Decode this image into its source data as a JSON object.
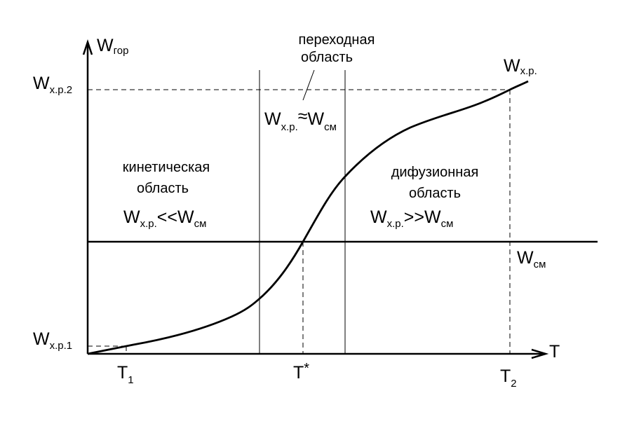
{
  "axes": {
    "y_label": {
      "main": "W",
      "sub": "гор"
    },
    "x_label": "T"
  },
  "y_marks": [
    {
      "main": "W",
      "sub": "х.р.2"
    },
    {
      "main": "W",
      "sub": "х.р.1"
    }
  ],
  "x_marks": [
    {
      "main": "T",
      "sub": "1"
    },
    {
      "main": "T",
      "sup": "*"
    },
    {
      "main": "T",
      "sub": "2"
    }
  ],
  "curve_label": {
    "main": "W",
    "sub": "х.р."
  },
  "line_label": {
    "main": "W",
    "sub": "см"
  },
  "regions": [
    {
      "title": [
        "кинетическая",
        "область"
      ],
      "relation": {
        "left": "W",
        "left_sub": "х.р.",
        "op": "<<",
        "right": "W",
        "right_sub": "см"
      }
    },
    {
      "title": [
        "переходная",
        "область"
      ],
      "relation": {
        "left": "W",
        "left_sub": "х.р.",
        "op": "≈",
        "right": "W",
        "right_sub": "см"
      }
    },
    {
      "title": [
        "дифузионная",
        "область"
      ],
      "relation": {
        "left": "W",
        "left_sub": "х.р.",
        "op": ">>",
        "right": "W",
        "right_sub": "см"
      }
    }
  ]
}
